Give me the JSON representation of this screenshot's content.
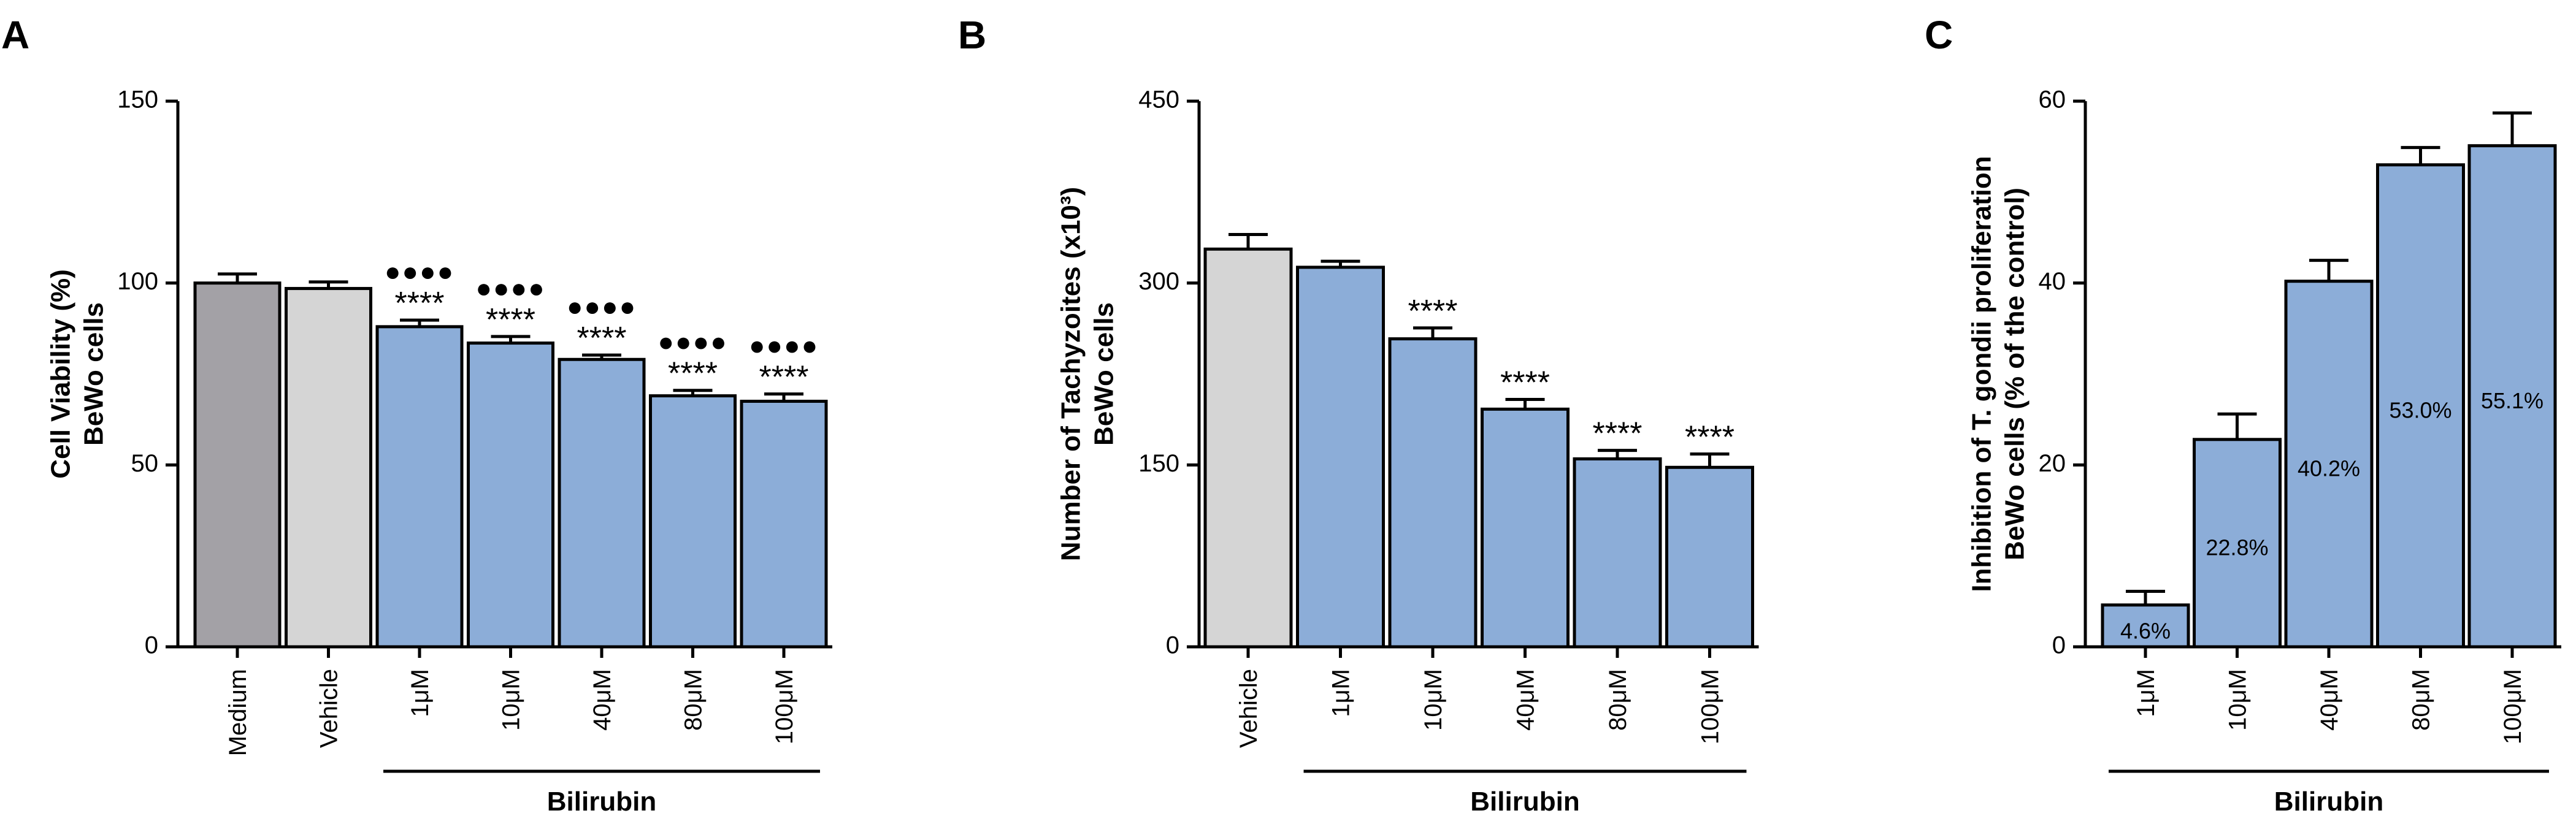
{
  "colors": {
    "medium": "#a3a1a6",
    "vehicle": "#d5d5d5",
    "bilirubin": "#8cadd8",
    "axis": "#000000"
  },
  "chart_data": [
    {
      "panel": "A",
      "type": "bar",
      "ylabel_lines": [
        "Cell Viability (%)",
        "BeWo cells"
      ],
      "ylim": [
        0,
        150
      ],
      "yticks": [
        0,
        50,
        100,
        150
      ],
      "categories": [
        "Medium",
        "Vehicle",
        "1μM",
        "10μM",
        "40μM",
        "80μM",
        "100μM"
      ],
      "values": [
        100,
        98.5,
        88,
        83.5,
        79,
        69,
        67.5
      ],
      "errors": [
        2.5,
        1.8,
        1.8,
        1.8,
        1.2,
        1.5,
        2.0
      ],
      "bar_colors": [
        "medium",
        "vehicle",
        "bilirubin",
        "bilirubin",
        "bilirubin",
        "bilirubin",
        "bilirubin"
      ],
      "significance": [
        "",
        "",
        "****",
        "****",
        "****",
        "****",
        "****"
      ],
      "significance_2": [
        "",
        "",
        "●●●●",
        "●●●●",
        "●●●●",
        "●●●●",
        "●●●●"
      ],
      "bar_labels": [
        "",
        "",
        "",
        "",
        "",
        "",
        ""
      ],
      "group_label": "Bilirubin",
      "group_start": 2,
      "group_end": 6
    },
    {
      "panel": "B",
      "type": "bar",
      "ylabel_lines": [
        "Number of Tachyzoites (x10³)",
        "BeWo cells"
      ],
      "ylim": [
        0,
        450
      ],
      "yticks": [
        0,
        150,
        300,
        450
      ],
      "categories": [
        "Vehicle",
        "1μM",
        "10μM",
        "40μM",
        "80μM",
        "100μM"
      ],
      "values": [
        328,
        313,
        254,
        196,
        155,
        148
      ],
      "errors": [
        12,
        5,
        9,
        8,
        7,
        11
      ],
      "bar_colors": [
        "vehicle",
        "bilirubin",
        "bilirubin",
        "bilirubin",
        "bilirubin",
        "bilirubin"
      ],
      "significance": [
        "",
        "",
        "****",
        "****",
        "****",
        "****"
      ],
      "significance_2": [
        "",
        "",
        "",
        "",
        "",
        ""
      ],
      "bar_labels": [
        "",
        "",
        "",
        "",
        "",
        ""
      ],
      "group_label": "Bilirubin",
      "group_start": 1,
      "group_end": 5
    },
    {
      "panel": "C",
      "type": "bar",
      "ylabel_lines": [
        "Inhibition of T. gondii proliferation",
        "BeWo cells (% of the control)"
      ],
      "ylim": [
        0,
        60
      ],
      "yticks": [
        0,
        20,
        40,
        60
      ],
      "categories": [
        "1μM",
        "10μM",
        "40μM",
        "80μM",
        "100μM"
      ],
      "values": [
        4.6,
        22.8,
        40.2,
        53.0,
        55.1
      ],
      "errors": [
        1.5,
        2.8,
        2.3,
        1.9,
        3.6
      ],
      "bar_colors": [
        "bilirubin",
        "bilirubin",
        "bilirubin",
        "bilirubin",
        "bilirubin"
      ],
      "significance": [
        "",
        "",
        "",
        "",
        ""
      ],
      "significance_2": [
        "",
        "",
        "",
        "",
        ""
      ],
      "bar_labels": [
        "4.6%",
        "22.8%",
        "40.2%",
        "53.0%",
        "55.1%"
      ],
      "group_label": "Bilirubin",
      "group_start": 0,
      "group_end": 4
    }
  ]
}
